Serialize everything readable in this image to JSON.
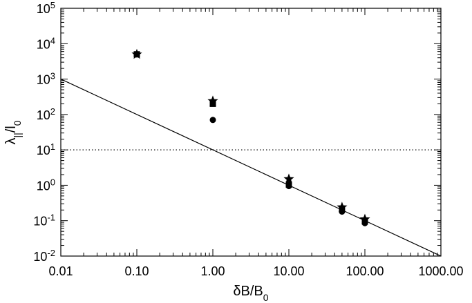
{
  "chart_data": {
    "type": "scatter",
    "xscale": "log",
    "yscale": "log",
    "xlim": [
      0.01,
      1000
    ],
    "ylim": [
      0.01,
      100000
    ],
    "grid": false,
    "x_ticks": [
      {
        "value": 0.01,
        "label": "0.01"
      },
      {
        "value": 0.1,
        "label": "0.10"
      },
      {
        "value": 1,
        "label": "1.00"
      },
      {
        "value": 10,
        "label": "10.00"
      },
      {
        "value": 100,
        "label": "100.00"
      },
      {
        "value": 1000,
        "label": "1000.00"
      }
    ],
    "y_ticks": [
      {
        "value": 0.01,
        "label_base": "10",
        "label_exp": "-2"
      },
      {
        "value": 0.1,
        "label_base": "10",
        "label_exp": "-1"
      },
      {
        "value": 1,
        "label_base": "10",
        "label_exp": "0"
      },
      {
        "value": 10,
        "label_base": "10",
        "label_exp": "1"
      },
      {
        "value": 100,
        "label_base": "10",
        "label_exp": "2"
      },
      {
        "value": 1000,
        "label_base": "10",
        "label_exp": "3"
      },
      {
        "value": 10000,
        "label_base": "10",
        "label_exp": "4"
      },
      {
        "value": 100000,
        "label_base": "10",
        "label_exp": "5"
      }
    ],
    "xlabel": {
      "main": "δB/B",
      "sub": "0"
    },
    "ylabel": {
      "p1": "λ",
      "sub1": "||",
      "p2": "/l",
      "sub2": "0"
    },
    "series": [
      {
        "marker": "circle",
        "x": [
          0.1,
          1,
          10,
          50,
          100
        ],
        "y": [
          5000,
          70,
          0.95,
          0.18,
          0.085
        ]
      },
      {
        "marker": "square",
        "x": [
          0.1,
          1,
          10,
          50,
          100
        ],
        "y": [
          5000,
          200,
          1.05,
          0.21,
          0.095
        ]
      },
      {
        "marker": "star",
        "x": [
          0.1,
          1,
          10,
          50,
          100
        ],
        "y": [
          5000,
          240,
          1.5,
          0.24,
          0.11
        ]
      }
    ],
    "lines": [
      {
        "style": "solid",
        "x": [
          0.01,
          1000
        ],
        "y": [
          1000,
          0.01
        ]
      },
      {
        "style": "dotted",
        "x": [
          0.01,
          1000
        ],
        "y": [
          10,
          10
        ]
      }
    ]
  }
}
